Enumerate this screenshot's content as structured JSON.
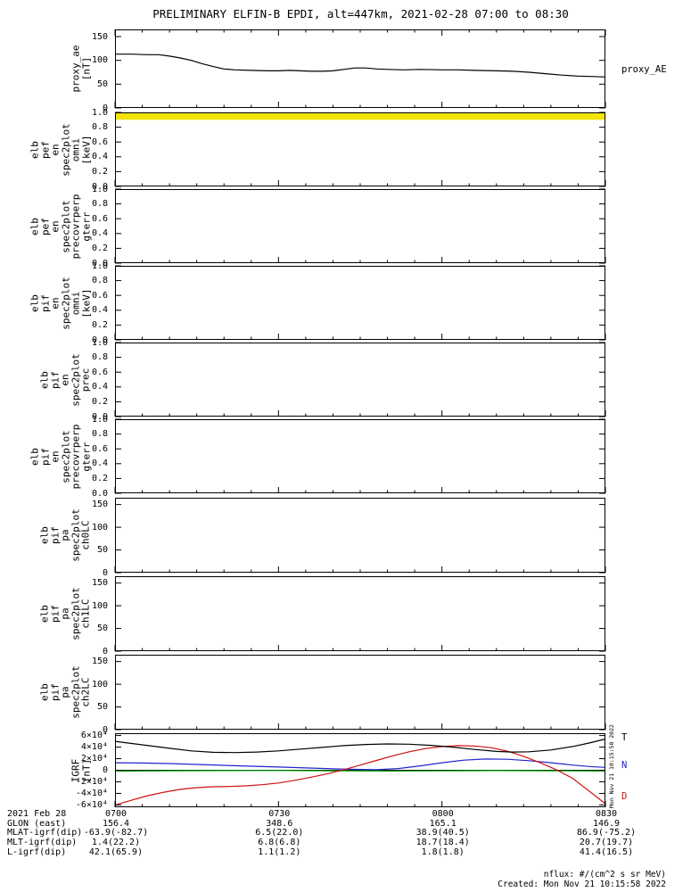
{
  "title": "PRELIMINARY ELFIN-B EPDI, alt=447km, 2021-02-28 07:00 to 08:30",
  "x_axis": {
    "tick_labels": [
      "0700",
      "0730",
      "0800",
      "0830"
    ],
    "tick_minutes": [
      0,
      30,
      60,
      90
    ],
    "minor_step_minutes": 5,
    "xlim_minutes": [
      0,
      90
    ]
  },
  "chart_data": [
    {
      "id": "proxy_ae",
      "type": "line",
      "ylabel_lines": [
        "proxy_ae",
        "[nT]"
      ],
      "ylim": [
        0,
        165
      ],
      "yticks": [
        {
          "v": 150,
          "label": "150"
        },
        {
          "v": 100,
          "label": "100"
        },
        {
          "v": 50,
          "label": "50"
        },
        {
          "v": 0,
          "label": "0"
        }
      ],
      "series": [
        {
          "name": "proxy_AE",
          "color": "#000000",
          "x": [
            0,
            3,
            6,
            8,
            10,
            12,
            14,
            16,
            18,
            20,
            22,
            25,
            28,
            30,
            32,
            34,
            36,
            38,
            40,
            42,
            44,
            46,
            48,
            50,
            53,
            56,
            60,
            63,
            66,
            70,
            73,
            76,
            79,
            82,
            85,
            88,
            90
          ],
          "y": [
            113,
            113,
            112,
            112,
            109,
            105,
            100,
            93,
            87,
            82,
            80,
            79,
            78,
            78,
            79,
            78,
            77,
            77,
            78,
            81,
            84,
            84,
            82,
            81,
            80,
            81,
            80,
            80,
            79,
            78,
            77,
            75,
            72,
            69,
            67,
            66,
            65
          ]
        }
      ],
      "right_labels": [
        {
          "text": "proxy_AE",
          "color": "#000000",
          "v": 80
        }
      ]
    },
    {
      "id": "elb_pef_en_spec2plot_omni",
      "type": "heatmap",
      "ylabel_lines": [
        "elb",
        "pef",
        "en",
        "spec2plot",
        "omni",
        "[keV]"
      ],
      "ylim": [
        0,
        1
      ],
      "yticks": [
        {
          "v": 1.0,
          "label": "1.0"
        },
        {
          "v": 0.8,
          "label": "0.8"
        },
        {
          "v": 0.6,
          "label": "0.6"
        },
        {
          "v": 0.4,
          "label": "0.4"
        },
        {
          "v": 0.2,
          "label": "0.2"
        },
        {
          "v": 0.0,
          "label": "0.0"
        }
      ],
      "bands": [
        {
          "x0": 0,
          "x1": 90,
          "y0": 0.9,
          "y1": 1.0,
          "color": "#f2e30c"
        }
      ],
      "series": []
    },
    {
      "id": "elb_pef_en_spec2plot_precovrperp_gterr",
      "type": "heatmap",
      "ylabel_lines": [
        "elb",
        "pef",
        "en",
        "spec2plot",
        "precovrperp",
        "gterr"
      ],
      "ylim": [
        0,
        1
      ],
      "yticks": [
        {
          "v": 1.0,
          "label": "1.0"
        },
        {
          "v": 0.8,
          "label": "0.8"
        },
        {
          "v": 0.6,
          "label": "0.6"
        },
        {
          "v": 0.4,
          "label": "0.4"
        },
        {
          "v": 0.2,
          "label": "0.2"
        },
        {
          "v": 0.0,
          "label": "0.0"
        }
      ],
      "series": []
    },
    {
      "id": "elb_pif_en_spec2plot_omni",
      "type": "heatmap",
      "ylabel_lines": [
        "elb",
        "pif",
        "en",
        "spec2plot",
        "omni",
        "[keV]"
      ],
      "ylim": [
        0,
        1
      ],
      "yticks": [
        {
          "v": 1.0,
          "label": "1.0"
        },
        {
          "v": 0.8,
          "label": "0.8"
        },
        {
          "v": 0.6,
          "label": "0.6"
        },
        {
          "v": 0.4,
          "label": "0.4"
        },
        {
          "v": 0.2,
          "label": "0.2"
        },
        {
          "v": 0.0,
          "label": "0.0"
        }
      ],
      "series": []
    },
    {
      "id": "elb_pif_en_spec2plot_prec",
      "type": "heatmap",
      "ylabel_lines": [
        "elb",
        "pif",
        "en",
        "spec2plot",
        "prec"
      ],
      "ylim": [
        0,
        1
      ],
      "yticks": [
        {
          "v": 1.0,
          "label": "1.0"
        },
        {
          "v": 0.8,
          "label": "0.8"
        },
        {
          "v": 0.6,
          "label": "0.6"
        },
        {
          "v": 0.4,
          "label": "0.4"
        },
        {
          "v": 0.2,
          "label": "0.2"
        },
        {
          "v": 0.0,
          "label": "0.0"
        }
      ],
      "series": []
    },
    {
      "id": "elb_pif_en_spec2plot_precovrperp_gterr",
      "type": "heatmap",
      "ylabel_lines": [
        "elb",
        "pif",
        "en",
        "spec2plot",
        "precovrperp",
        "gterr"
      ],
      "ylim": [
        0,
        1
      ],
      "yticks": [
        {
          "v": 1.0,
          "label": "1.0"
        },
        {
          "v": 0.8,
          "label": "0.8"
        },
        {
          "v": 0.6,
          "label": "0.6"
        },
        {
          "v": 0.4,
          "label": "0.4"
        },
        {
          "v": 0.2,
          "label": "0.2"
        },
        {
          "v": 0.0,
          "label": "0.0"
        }
      ],
      "series": []
    },
    {
      "id": "elb_pif_pa_spec2plot_ch0LC",
      "type": "line",
      "ylabel_lines": [
        "elb",
        "pif",
        "pa",
        "spec2plot",
        "ch0LC"
      ],
      "ylim": [
        0,
        165
      ],
      "yticks": [
        {
          "v": 150,
          "label": "150"
        },
        {
          "v": 100,
          "label": "100"
        },
        {
          "v": 50,
          "label": "50"
        },
        {
          "v": 0,
          "label": "0"
        }
      ],
      "series": []
    },
    {
      "id": "elb_pif_pa_spec2plot_ch1LC",
      "type": "line",
      "ylabel_lines": [
        "elb",
        "pif",
        "pa",
        "spec2plot",
        "ch1LC"
      ],
      "ylim": [
        0,
        165
      ],
      "yticks": [
        {
          "v": 150,
          "label": "150"
        },
        {
          "v": 100,
          "label": "100"
        },
        {
          "v": 50,
          "label": "50"
        },
        {
          "v": 0,
          "label": "0"
        }
      ],
      "series": []
    },
    {
      "id": "elb_pif_pa_spec2plot_ch2LC",
      "type": "line",
      "ylabel_lines": [
        "elb",
        "pif",
        "pa",
        "spec2plot",
        "ch2LC"
      ],
      "ylim": [
        0,
        165
      ],
      "yticks": [
        {
          "v": 150,
          "label": "150"
        },
        {
          "v": 100,
          "label": "100"
        },
        {
          "v": 50,
          "label": "50"
        },
        {
          "v": 0,
          "label": "0"
        }
      ],
      "series": []
    },
    {
      "id": "igrf",
      "type": "line",
      "ylabel_lines": [
        "IGRF",
        "[nT]"
      ],
      "ylim": [
        -64000,
        64000
      ],
      "yticks": [
        {
          "v": 60000,
          "label": "6×10⁴"
        },
        {
          "v": 40000,
          "label": "4×10⁴"
        },
        {
          "v": 20000,
          "label": "2×10⁴"
        },
        {
          "v": 0,
          "label": "0"
        },
        {
          "v": -20000,
          "label": "-2×10⁴"
        },
        {
          "v": -40000,
          "label": "-4×10⁴"
        },
        {
          "v": -60000,
          "label": "-6×10⁴"
        }
      ],
      "zero_line": true,
      "series": [
        {
          "name": "E",
          "color": "#00a000",
          "x": [
            0,
            10,
            20,
            30,
            40,
            50,
            60,
            70,
            80,
            90
          ],
          "y": [
            -1500,
            -1000,
            -600,
            -500,
            -900,
            -1400,
            -1100,
            -600,
            -900,
            -1400
          ]
        },
        {
          "name": "N",
          "color": "#2323cf",
          "x": [
            0,
            5,
            10,
            15,
            20,
            25,
            30,
            35,
            40,
            44,
            48,
            52,
            56,
            60,
            64,
            68,
            72,
            76,
            80,
            84,
            87,
            90
          ],
          "y": [
            13000,
            12500,
            11500,
            10000,
            8500,
            7000,
            5500,
            4000,
            2500,
            1500,
            1000,
            3000,
            7500,
            13000,
            17500,
            19500,
            19000,
            16500,
            13000,
            9000,
            6500,
            5000
          ]
        },
        {
          "name": "D",
          "color": "#cf1111",
          "x": [
            0,
            3,
            6,
            9,
            12,
            15,
            18,
            21,
            24,
            27,
            30,
            33,
            36,
            39,
            42,
            45,
            48,
            51,
            54,
            57,
            60,
            63,
            66,
            69,
            72,
            75,
            78,
            81,
            84,
            87,
            90
          ],
          "y": [
            -60000,
            -52000,
            -44000,
            -38000,
            -33000,
            -30000,
            -28500,
            -28000,
            -27000,
            -25000,
            -22000,
            -17500,
            -12000,
            -6000,
            1000,
            9000,
            17000,
            25000,
            32000,
            37500,
            41000,
            42500,
            42000,
            39000,
            33000,
            24000,
            13000,
            1000,
            -14000,
            -36000,
            -58000
          ]
        },
        {
          "name": "T",
          "color": "#000000",
          "x": [
            0,
            5,
            10,
            14,
            18,
            22,
            26,
            30,
            34,
            38,
            42,
            46,
            50,
            54,
            58,
            62,
            66,
            70,
            73,
            76,
            80,
            84,
            87,
            90
          ],
          "y": [
            50000,
            44000,
            38000,
            33500,
            31000,
            30500,
            31500,
            33500,
            36500,
            39500,
            42500,
            44500,
            45500,
            45000,
            43000,
            40000,
            36000,
            32500,
            31500,
            32000,
            35000,
            41000,
            47000,
            54000
          ]
        }
      ],
      "right_labels": [
        {
          "text": "T",
          "color": "#000000",
          "v": 57000
        },
        {
          "text": "N",
          "color": "#2323cf",
          "v": 9000
        },
        {
          "text": "D",
          "color": "#cf1111",
          "v": -46000
        }
      ]
    }
  ],
  "footer": {
    "rows": [
      {
        "id": "date-time",
        "label": "2021 Feb 28",
        "values": [
          "0700",
          "0730",
          "0800",
          "0830"
        ]
      },
      {
        "id": "glon",
        "label": "GLON (east)",
        "values": [
          "156.4",
          "348.6",
          "165.1",
          "146.9"
        ]
      },
      {
        "id": "mlat",
        "label": "MLAT-igrf(dip)",
        "values": [
          "-63.9(-82.7)",
          "6.5(22.0)",
          "38.9(40.5)",
          "86.9(-75.2)"
        ]
      },
      {
        "id": "mlt",
        "label": "MLT-igrf(dip)",
        "values": [
          "1.4(22.2)",
          "6.8(6.8)",
          "18.7(18.4)",
          "20.7(19.7)"
        ]
      },
      {
        "id": "l",
        "label": "L-igrf(dip)",
        "values": [
          "42.1(65.9)",
          "1.1(1.2)",
          "1.8(1.8)",
          "41.4(16.5)"
        ]
      }
    ]
  },
  "notes": {
    "nflux": "nflux: #/(cm^2 s sr MeV)",
    "created": "Created: Mon Nov 21 10:15:58 2022",
    "side_stamp": "Mon Nov 21 10:15:58 2022"
  }
}
